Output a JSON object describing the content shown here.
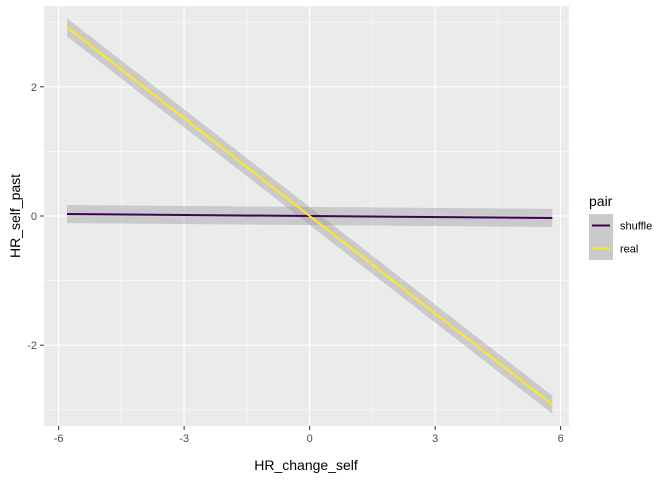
{
  "chart_data": {
    "type": "line",
    "xlabel": "HR_change_self",
    "ylabel": "HR_self_past",
    "xlim": [
      -6.35,
      6.2
    ],
    "ylim": [
      -3.25,
      3.25
    ],
    "x_ticks": [
      -6,
      -3,
      0,
      3,
      6
    ],
    "x_tick_labels": [
      "-6",
      "-3",
      "0",
      "3",
      "6"
    ],
    "y_ticks": [
      -2,
      0,
      2
    ],
    "y_tick_labels": [
      "-2",
      "0",
      "2"
    ],
    "grid": true,
    "background": "#ebebeb",
    "legend": {
      "title": "pair",
      "position": "right",
      "entries": [
        "shuffle",
        "real"
      ]
    },
    "series": [
      {
        "name": "shuffle",
        "color": "#440154",
        "x": [
          -5.8,
          5.8
        ],
        "y": [
          0.03,
          -0.03
        ],
        "ci_lower": [
          -0.11,
          -0.17
        ],
        "ci_upper": [
          0.17,
          0.11
        ]
      },
      {
        "name": "real",
        "color": "#fde725",
        "x": [
          -5.8,
          5.8
        ],
        "y": [
          2.92,
          -2.92
        ],
        "ci_lower": [
          2.78,
          -3.06
        ],
        "ci_upper": [
          3.06,
          -2.78
        ]
      }
    ]
  }
}
